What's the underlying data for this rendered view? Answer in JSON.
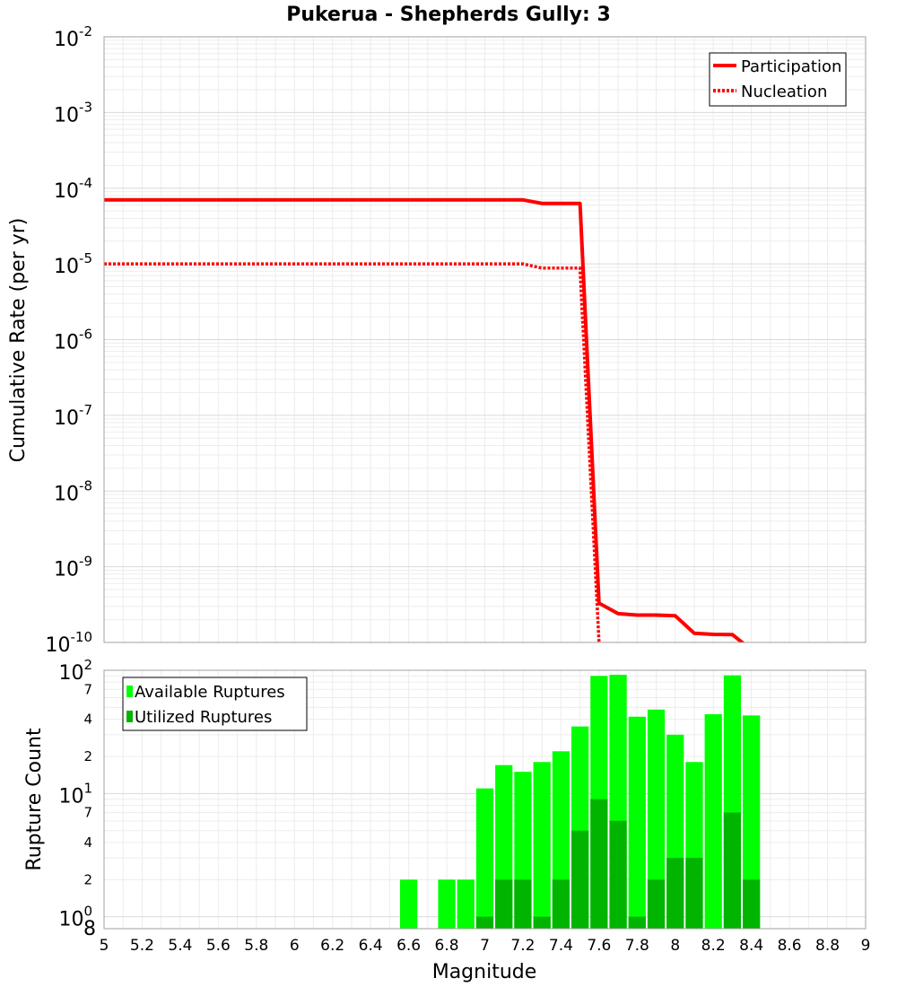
{
  "chart_data": [
    {
      "type": "line",
      "title": "Pukerua - Shepherds Gully: 3",
      "xlabel": "",
      "ylabel": "Cumulative Rate (per yr)",
      "xlim": [
        5,
        9
      ],
      "ylim": [
        1e-10,
        0.01
      ],
      "yscale": "log",
      "grid": true,
      "legend_position": "top-right",
      "y_tick_labels": [
        {
          "base": "10",
          "exp": "-2"
        },
        {
          "base": "10",
          "exp": "-3"
        },
        {
          "base": "10",
          "exp": "-4"
        },
        {
          "base": "10",
          "exp": "-5"
        },
        {
          "base": "10",
          "exp": "-6"
        },
        {
          "base": "10",
          "exp": "-7"
        },
        {
          "base": "10",
          "exp": "-8"
        },
        {
          "base": "10",
          "exp": "-9"
        },
        {
          "base": "10",
          "exp": "-10"
        }
      ],
      "series": [
        {
          "name": "Participation",
          "color": "#ff0000",
          "style": "solid",
          "x": [
            5.0,
            5.1,
            5.2,
            5.3,
            5.4,
            5.5,
            5.6,
            5.7,
            5.8,
            5.9,
            6.0,
            6.1,
            6.2,
            6.3,
            6.4,
            6.5,
            6.6,
            6.7,
            6.8,
            6.9,
            7.0,
            7.1,
            7.2,
            7.3,
            7.4,
            7.5,
            7.6,
            7.7,
            7.8,
            7.9,
            8.0,
            8.1,
            8.2,
            8.3,
            8.4
          ],
          "y": [
            7e-05,
            7e-05,
            7e-05,
            7e-05,
            7e-05,
            7e-05,
            7e-05,
            7e-05,
            7e-05,
            7e-05,
            7e-05,
            7e-05,
            7e-05,
            7e-05,
            7e-05,
            7e-05,
            7e-05,
            7e-05,
            7e-05,
            7e-05,
            7e-05,
            7e-05,
            7e-05,
            6.3e-05,
            6.3e-05,
            6.3e-05,
            3.3e-10,
            2.4e-10,
            2.3e-10,
            2.3e-10,
            2.25e-10,
            1.32e-10,
            1.28e-10,
            1.27e-10,
            8e-11
          ]
        },
        {
          "name": "Nucleation",
          "color": "#ff0000",
          "style": "dotted",
          "x": [
            5.0,
            5.1,
            5.2,
            5.3,
            5.4,
            5.5,
            5.6,
            5.7,
            5.8,
            5.9,
            6.0,
            6.1,
            6.2,
            6.3,
            6.4,
            6.5,
            6.6,
            6.7,
            6.8,
            6.9,
            7.0,
            7.1,
            7.2,
            7.3,
            7.4,
            7.5,
            7.6,
            7.7
          ],
          "y": [
            1e-05,
            1e-05,
            1e-05,
            1e-05,
            1e-05,
            1e-05,
            1e-05,
            1e-05,
            1e-05,
            1e-05,
            1e-05,
            1e-05,
            1e-05,
            1e-05,
            1e-05,
            1e-05,
            1e-05,
            1e-05,
            1e-05,
            1e-05,
            1e-05,
            1e-05,
            1e-05,
            8.8e-06,
            8.8e-06,
            8.8e-06,
            1e-10,
            1e-11
          ]
        }
      ]
    },
    {
      "type": "bar",
      "title": "",
      "xlabel": "Magnitude",
      "ylabel": "Rupture Count",
      "xlim": [
        5,
        9
      ],
      "ylim": [
        0.8,
        100
      ],
      "yscale": "log",
      "grid": true,
      "legend_position": "top-left",
      "x_ticks": [
        "5",
        "5.2",
        "5.4",
        "5.6",
        "5.8",
        "6",
        "6.2",
        "6.4",
        "6.6",
        "6.8",
        "7",
        "7.2",
        "7.4",
        "7.6",
        "7.8",
        "8",
        "8.2",
        "8.4",
        "8.6",
        "8.8",
        "9"
      ],
      "y_tick_labels": [
        {
          "base": "10",
          "exp": "2"
        },
        {
          "base": "10",
          "exp": "1"
        },
        {
          "base": "10",
          "exp": "0"
        }
      ],
      "y_minor_labels": [
        {
          "label": "7",
          "value": 70
        },
        {
          "label": "4",
          "value": 40
        },
        {
          "label": "2",
          "value": 20
        },
        {
          "label": "7",
          "value": 7
        },
        {
          "label": "4",
          "value": 4
        },
        {
          "label": "2",
          "value": 2
        }
      ],
      "y_bottom_label": "8",
      "bin_width": 0.1,
      "series": [
        {
          "name": "Available Ruptures",
          "color": "#00ff00",
          "centers": [
            6.6,
            6.7,
            6.8,
            6.9,
            7.0,
            7.1,
            7.2,
            7.3,
            7.4,
            7.5,
            7.6,
            7.7,
            7.8,
            7.9,
            8.0,
            8.1,
            8.2,
            8.3,
            8.4
          ],
          "values": [
            2,
            0,
            2,
            2,
            11,
            17,
            15,
            18,
            22,
            35,
            90,
            92,
            42,
            48,
            30,
            18,
            44,
            91,
            43
          ]
        },
        {
          "name": "Utilized Ruptures",
          "color": "#00b400",
          "centers": [
            6.6,
            6.7,
            6.8,
            6.9,
            7.0,
            7.1,
            7.2,
            7.3,
            7.4,
            7.5,
            7.6,
            7.7,
            7.8,
            7.9,
            8.0,
            8.1,
            8.2,
            8.3,
            8.4
          ],
          "values": [
            0,
            0,
            0,
            0,
            1,
            2,
            2,
            1,
            2,
            5,
            9,
            6,
            1,
            2,
            3,
            3,
            0,
            7,
            2
          ]
        }
      ]
    }
  ]
}
